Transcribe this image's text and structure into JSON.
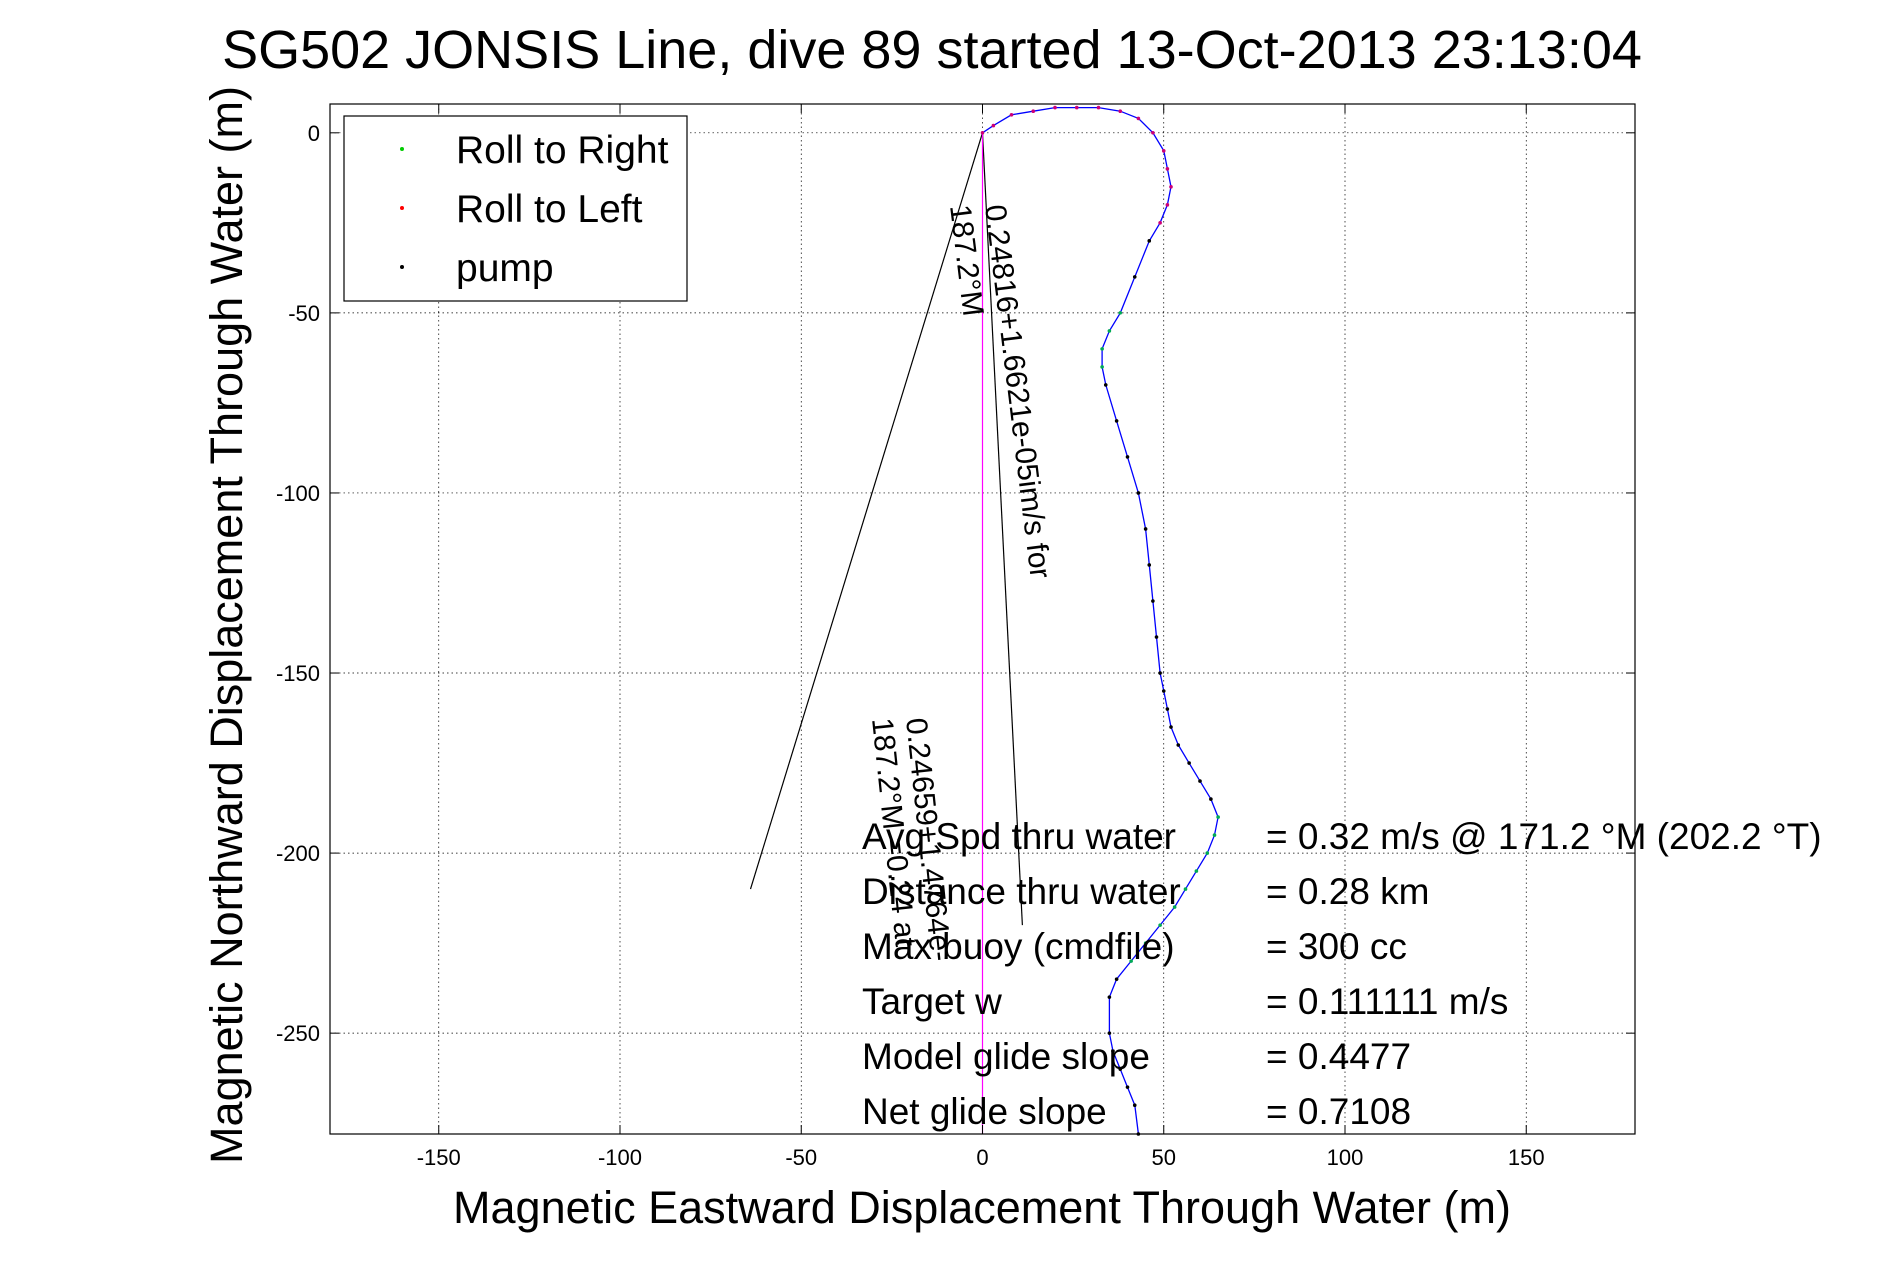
{
  "chart_data": {
    "type": "line",
    "title": "SG502 JONSIS Line, dive 89 started 13-Oct-2013 23:13:04",
    "xlabel": "Magnetic Eastward Displacement Through Water (m)",
    "ylabel": "Magnetic Northward Displacement Through Water (m)",
    "xlim": [
      -180,
      180
    ],
    "ylim": [
      -278,
      8
    ],
    "xticks": [
      -150,
      -100,
      -50,
      0,
      50,
      100,
      150
    ],
    "yticks": [
      0,
      -50,
      -100,
      -150,
      -200,
      -250
    ],
    "grid": true,
    "legend_position": "top-left",
    "legend": [
      {
        "label": "Roll to Right",
        "color": "#00cc00"
      },
      {
        "label": "Roll to Left",
        "color": "#ff0000"
      },
      {
        "label": "pump",
        "color": "#000000"
      }
    ],
    "series": [
      {
        "color": "#0000ff",
        "x": [
          0,
          3,
          8,
          14,
          20,
          26,
          32,
          38,
          43,
          47,
          50,
          51,
          52,
          51,
          49,
          46,
          42,
          38,
          35,
          33,
          33,
          34,
          37,
          40,
          43,
          45,
          46,
          47,
          48,
          49,
          50,
          51,
          52,
          54,
          57,
          60,
          63,
          65,
          64,
          62,
          59,
          56,
          53,
          49,
          45,
          41,
          37,
          35,
          35,
          36,
          38,
          40,
          42,
          43
        ],
        "y": [
          0,
          2,
          5,
          6,
          7,
          7,
          7,
          6,
          4,
          0,
          -5,
          -10,
          -15,
          -20,
          -25,
          -30,
          -40,
          -50,
          -55,
          -60,
          -65,
          -70,
          -80,
          -90,
          -100,
          -110,
          -120,
          -130,
          -140,
          -150,
          -155,
          -160,
          -165,
          -170,
          -175,
          -180,
          -185,
          -190,
          -195,
          -200,
          -205,
          -210,
          -215,
          -220,
          -225,
          -230,
          -235,
          -240,
          -250,
          -255,
          -260,
          -265,
          -270,
          -278
        ]
      }
    ],
    "dive_track": {
      "color": "#ff00ff",
      "x": [
        0,
        0
      ],
      "y": [
        0,
        -278
      ]
    },
    "current_cone": [
      {
        "color": "#000000",
        "x": [
          0,
          -64
        ],
        "y": [
          0,
          -210
        ]
      },
      {
        "color": "#000000",
        "x": [
          0,
          11
        ],
        "y": [
          0,
          -220
        ]
      }
    ],
    "annotations": {
      "track_label_1a": "0.24816+1.6621e-05im/s for",
      "track_label_1b": "187.2°M",
      "track_label_2a": "0.24659+1.4764e-",
      "track_label_2b": "187.2°M =0.24 at"
    },
    "stats": [
      {
        "label": "Avg Spd thru water",
        "value": "=  0.32 m/s @ 171.2 °M (202.2 °T)"
      },
      {
        "label": "Distance thru water",
        "value": "=  0.28 km"
      },
      {
        "label": "Max buoy (cmdfile)",
        "value": "= 300 cc"
      },
      {
        "label": "Target w",
        "value": "= 0.111111 m/s"
      },
      {
        "label": "Model glide slope",
        "value": "= 0.4477"
      },
      {
        "label": "Net glide slope",
        "value": "= 0.7108"
      }
    ]
  }
}
